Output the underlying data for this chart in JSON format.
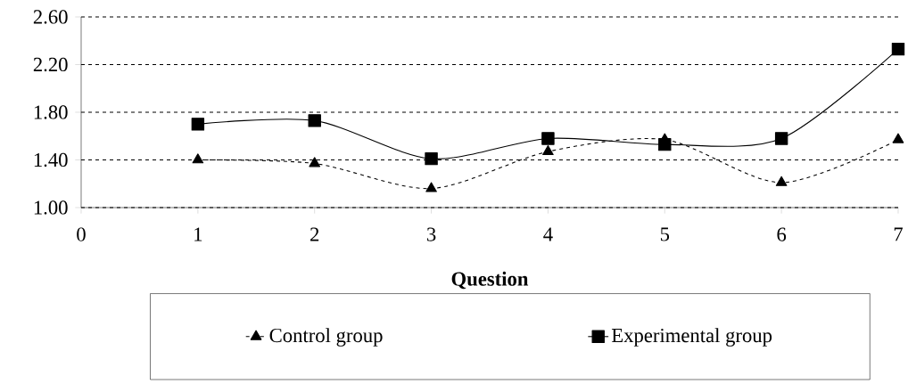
{
  "chart_data": {
    "type": "line",
    "xlabel": "Question",
    "x": [
      1,
      2,
      3,
      4,
      5,
      6,
      7
    ],
    "series": [
      {
        "name": "Control group",
        "color": "#000000",
        "marker": "triangle",
        "line_style": "dashed",
        "values": [
          1.4,
          1.37,
          1.16,
          1.47,
          1.57,
          1.21,
          1.57
        ]
      },
      {
        "name": "Experimental group",
        "color": "#000000",
        "marker": "square",
        "line_style": "solid",
        "values": [
          1.7,
          1.73,
          1.41,
          1.58,
          1.53,
          1.58,
          2.33
        ]
      }
    ],
    "xlim": [
      0,
      7
    ],
    "xticks": [
      0,
      1,
      2,
      3,
      4,
      5,
      6,
      7
    ],
    "ylim": [
      1.0,
      2.6
    ],
    "yticks": [
      {
        "value": 1.0,
        "label": "1.00"
      },
      {
        "value": 1.4,
        "label": "1.40"
      },
      {
        "value": 1.8,
        "label": "1.80"
      },
      {
        "value": 2.2,
        "label": "2.20"
      },
      {
        "value": 2.6,
        "label": "2.60"
      }
    ],
    "grid": "y",
    "legend": "bottom"
  }
}
